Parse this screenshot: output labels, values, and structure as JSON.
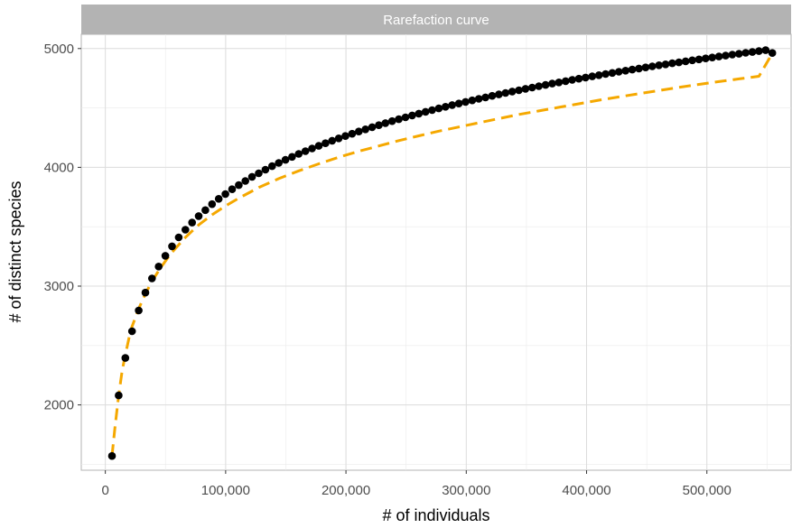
{
  "chart_data": {
    "type": "scatter",
    "title": "Rarefaction curve",
    "xlabel": "# of individuals",
    "ylabel": "# of distinct species",
    "xlim": [
      -20000,
      570000
    ],
    "ylim": [
      1450,
      5120
    ],
    "x_ticks": [
      0,
      100000,
      200000,
      300000,
      400000,
      500000
    ],
    "x_tick_labels": [
      "0",
      "100,000",
      "200,000",
      "300,000",
      "400,000",
      "500,000"
    ],
    "y_ticks": [
      2000,
      3000,
      4000,
      5000
    ],
    "y_tick_labels": [
      "2000",
      "3000",
      "4000",
      "5000"
    ],
    "grid": true,
    "legend": "none",
    "series": [
      {
        "type": "points",
        "color": "#000000",
        "x": [
          5544,
          11088,
          16632,
          22176,
          27720,
          33264,
          38808,
          44352,
          49896,
          55440,
          60984,
          66528,
          72072,
          77616,
          83160,
          88704,
          94248,
          99792,
          105336,
          110880,
          116424,
          121968,
          127512,
          133056,
          138600,
          144144,
          149688,
          155232,
          160776,
          166320,
          171864,
          177408,
          182952,
          188496,
          194040,
          199584,
          205128,
          210672,
          216216,
          221760,
          227304,
          232848,
          238392,
          243936,
          249480,
          255024,
          260568,
          266112,
          271656,
          277200,
          282744,
          288288,
          293832,
          299376,
          304920,
          310464,
          316008,
          321552,
          327096,
          332640,
          338184,
          343728,
          349272,
          354816,
          360360,
          365904,
          371448,
          376992,
          382536,
          388080,
          393624,
          399168,
          404712,
          410256,
          415800,
          421344,
          426888,
          432432,
          437976,
          443520,
          449064,
          454608,
          460152,
          465696,
          471240,
          476784,
          482328,
          487872,
          493416,
          498960,
          504504,
          510048,
          515592,
          521136,
          526680,
          532224,
          537768,
          543312,
          548856,
          554400
        ],
        "y": [
          1570,
          2080,
          2395,
          2620,
          2795,
          2945,
          3065,
          3165,
          3255,
          3335,
          3410,
          3475,
          3535,
          3590,
          3640,
          3690,
          3735,
          3775,
          3815,
          3850,
          3885,
          3920,
          3950,
          3980,
          4010,
          4037,
          4063,
          4088,
          4113,
          4136,
          4159,
          4181,
          4203,
          4224,
          4244,
          4264,
          4283,
          4302,
          4320,
          4338,
          4355,
          4372,
          4389,
          4405,
          4421,
          4437,
          4452,
          4467,
          4482,
          4496,
          4510,
          4524,
          4537,
          4551,
          4564,
          4577,
          4589,
          4602,
          4614,
          4626,
          4638,
          4649,
          4661,
          4672,
          4683,
          4694,
          4705,
          4715,
          4726,
          4736,
          4746,
          4756,
          4766,
          4776,
          4786,
          4795,
          4805,
          4814,
          4823,
          4832,
          4841,
          4850,
          4859,
          4867,
          4876,
          4884,
          4893,
          4901,
          4909,
          4917,
          4925,
          4933,
          4941,
          4949,
          4956,
          4964,
          4971,
          4979,
          4986,
          4963
        ]
      },
      {
        "type": "dashed-line",
        "color": "#f5a800",
        "x": [
          5544,
          8000,
          11088,
          14000,
          16632,
          20000,
          22176,
          27720,
          33264,
          38808,
          44352,
          49896,
          55440,
          66528,
          77616,
          88704,
          99792,
          110880,
          127512,
          144144,
          160776,
          177408,
          194040,
          210672,
          227304,
          243936,
          260568,
          277200,
          293832,
          310464,
          327096,
          343728,
          360360,
          376992,
          393624,
          410256,
          426888,
          443520,
          460152,
          476784,
          493416,
          510048,
          526680,
          543312,
          554400
        ],
        "y": [
          1570,
          1810,
          2080,
          2290,
          2420,
          2580,
          2660,
          2810,
          2935,
          3040,
          3130,
          3210,
          3285,
          3410,
          3515,
          3600,
          3675,
          3740,
          3830,
          3905,
          3970,
          4030,
          4085,
          4135,
          4180,
          4225,
          4265,
          4305,
          4340,
          4375,
          4410,
          4445,
          4475,
          4505,
          4535,
          4565,
          4593,
          4620,
          4647,
          4673,
          4698,
          4722,
          4745,
          4767,
          4960
        ]
      }
    ]
  }
}
